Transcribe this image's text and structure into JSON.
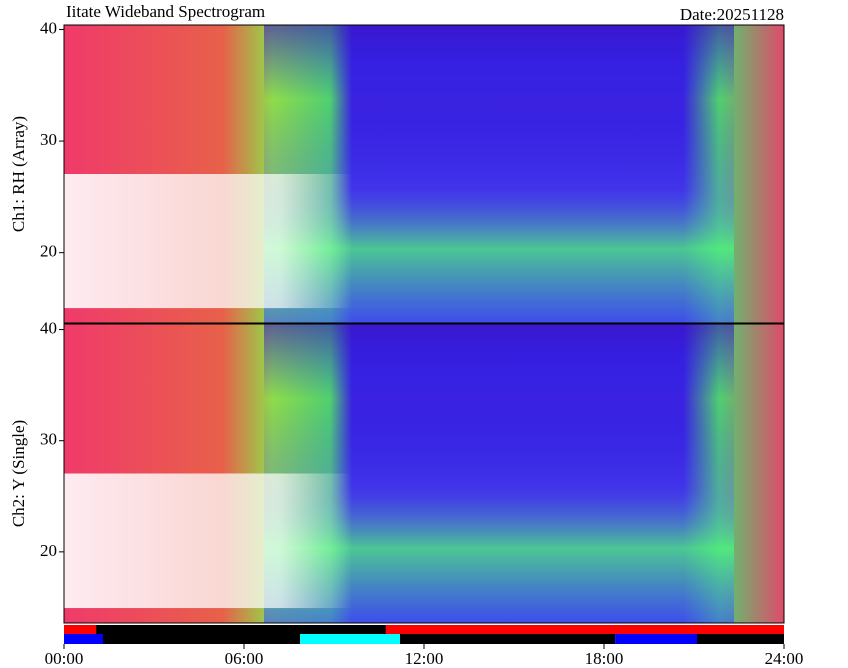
{
  "chart_data": [
    {
      "type": "heatmap",
      "title": "Iitate Wideband Spectrogram",
      "date": "Date:20251128",
      "ylabel": "Ch1: RH (Array)",
      "xlim": [
        0,
        24
      ],
      "ylim": [
        13.7,
        40.4
      ],
      "yticks": [
        20,
        30,
        40
      ]
    },
    {
      "type": "heatmap",
      "ylabel": "Ch2: Y (Single)",
      "xlim": [
        0,
        24
      ],
      "ylim": [
        13.6,
        40.5
      ],
      "yticks": [
        20,
        30,
        40
      ]
    },
    {
      "type": "timeline",
      "xlim": [
        0,
        24
      ],
      "xticks": [
        {
          "value": 0,
          "label": "00:00"
        },
        {
          "value": 6,
          "label": "06:00"
        },
        {
          "value": 12,
          "label": "12:00"
        },
        {
          "value": 18,
          "label": "18:00"
        },
        {
          "value": 24,
          "label": "24:00"
        }
      ],
      "rows": [
        {
          "segments": [
            {
              "start": 0,
              "end": 1.07,
              "color": "#ff0000"
            },
            {
              "start": 1.07,
              "end": 10.73,
              "color": "#000000"
            },
            {
              "start": 10.73,
              "end": 24,
              "color": "#ff0000"
            }
          ]
        },
        {
          "segments": [
            {
              "start": 0,
              "end": 1.3,
              "color": "#0000ff"
            },
            {
              "start": 1.3,
              "end": 7.87,
              "color": "#000000"
            },
            {
              "start": 7.87,
              "end": 11.2,
              "color": "#00ffff"
            },
            {
              "start": 11.2,
              "end": 18.37,
              "color": "#000000"
            },
            {
              "start": 18.37,
              "end": 21.1,
              "color": "#0000ff"
            },
            {
              "start": 21.1,
              "end": 24,
              "color": "#000000"
            }
          ]
        }
      ]
    }
  ]
}
